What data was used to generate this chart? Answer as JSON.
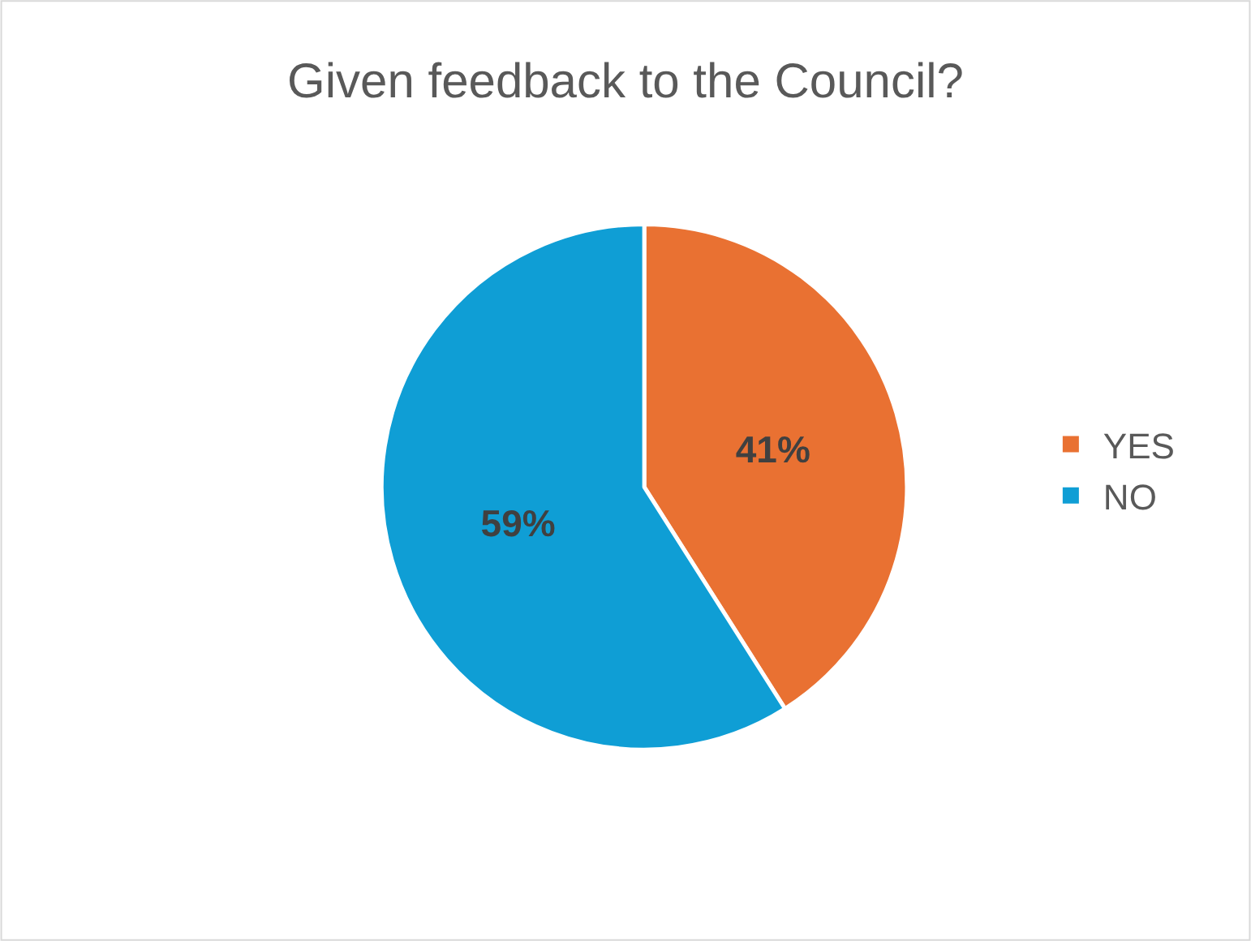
{
  "chart_data": {
    "type": "pie",
    "title": "Given feedback to the Council?",
    "categories": [
      "YES",
      "NO"
    ],
    "values": [
      41,
      59
    ],
    "colors": [
      "#e97132",
      "#0f9ed5"
    ],
    "value_labels": [
      "41%",
      "59%"
    ],
    "legend": "right"
  }
}
